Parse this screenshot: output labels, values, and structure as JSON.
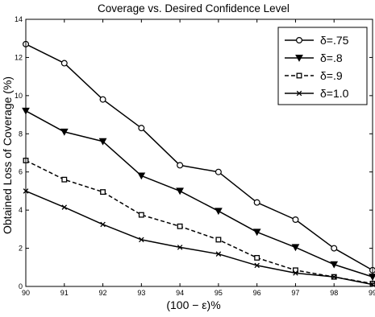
{
  "chart_data": {
    "type": "line",
    "title": "Coverage vs. Desired Confidence Level",
    "xlabel": "(100 − ε)%",
    "ylabel": "Obtained Loss of Coverage (%)",
    "x": [
      90,
      91,
      92,
      93,
      94,
      95,
      96,
      97,
      98,
      99
    ],
    "xticks": [
      90,
      91,
      92,
      93,
      94,
      95,
      96,
      97,
      98,
      99
    ],
    "yticks": [
      0,
      2,
      4,
      6,
      8,
      10,
      12,
      14
    ],
    "xlim": [
      90,
      99
    ],
    "ylim": [
      0,
      14
    ],
    "grid": false,
    "legend_position": "top-right",
    "series": [
      {
        "name": "δ=.75",
        "marker": "circle",
        "dash": "solid",
        "values": [
          12.7,
          11.7,
          9.8,
          8.3,
          6.35,
          6.0,
          4.4,
          3.5,
          2.0,
          0.85
        ]
      },
      {
        "name": "δ=.8",
        "marker": "triangle-down",
        "dash": "solid",
        "values": [
          9.2,
          8.1,
          7.6,
          5.8,
          5.0,
          3.95,
          2.85,
          2.05,
          1.15,
          0.5
        ]
      },
      {
        "name": "δ=.9",
        "marker": "square",
        "dash": "dashed",
        "values": [
          6.6,
          5.6,
          4.95,
          3.75,
          3.15,
          2.45,
          1.5,
          0.85,
          0.5,
          0.15
        ]
      },
      {
        "name": "δ=1.0",
        "marker": "x",
        "dash": "solid",
        "values": [
          5.0,
          4.15,
          3.25,
          2.45,
          2.05,
          1.7,
          1.1,
          0.7,
          0.5,
          0.1
        ]
      }
    ]
  }
}
